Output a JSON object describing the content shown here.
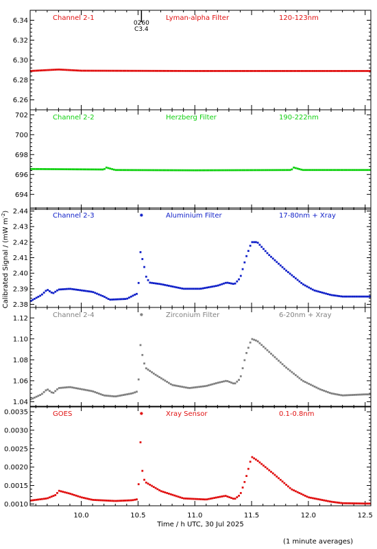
{
  "colors": {
    "red": "#e01010",
    "green": "#10d010",
    "blue": "#1020c8",
    "gray": "#808080",
    "axis": "#000000"
  },
  "chart_data": {
    "type": "scatter",
    "xlabel": "Time / h UTC, 30 Jul 2025",
    "ylabel": "Calibrated Signal / (mW m",
    "ylabel_sup": "-2",
    "ylabel_close": ")",
    "footnote": "(1 minute averages)",
    "xlim": [
      9.55,
      12.55
    ],
    "xticks": [
      "10.0",
      "10.5",
      "11.0",
      "11.5",
      "12.0",
      "12.5"
    ],
    "xtick_values": [
      10.0,
      10.5,
      11.0,
      11.5,
      12.0,
      12.5
    ],
    "event_marker": {
      "x": 10.53,
      "label_top": "0260",
      "label_bottom": "C3.4"
    },
    "panels": [
      {
        "channel": "Channel 2-1",
        "filter": "Lyman-alpha Filter",
        "band": "120-123nm",
        "color_key": "red",
        "ylim": [
          6.25,
          6.35
        ],
        "yticks": [
          "6.26",
          "6.28",
          "6.30",
          "6.32",
          "6.34"
        ],
        "ytick_values": [
          6.26,
          6.28,
          6.3,
          6.32,
          6.34
        ],
        "knots": [
          [
            9.55,
            6.289
          ],
          [
            9.8,
            6.2905
          ],
          [
            10.0,
            6.2893
          ],
          [
            11.0,
            6.289
          ],
          [
            12.5,
            6.289
          ]
        ],
        "flare_star": false
      },
      {
        "channel": "Channel 2-2",
        "filter": "Herzberg Filter",
        "band": "190-222nm",
        "color_key": "green",
        "ylim": [
          692.5,
          702.5
        ],
        "yticks": [
          "694",
          "696",
          "698",
          "700",
          "702"
        ],
        "ytick_values": [
          694,
          696,
          698,
          700,
          702
        ],
        "knots": [
          [
            9.55,
            696.55
          ],
          [
            10.2,
            696.5
          ],
          [
            10.22,
            696.7
          ],
          [
            10.3,
            696.45
          ],
          [
            11.0,
            696.42
          ],
          [
            11.85,
            696.45
          ],
          [
            11.87,
            696.7
          ],
          [
            11.95,
            696.45
          ],
          [
            12.5,
            696.45
          ]
        ],
        "flare_star": false
      },
      {
        "channel": "Channel 2-3",
        "filter": "Aluminium Filter",
        "band": "17-80nm + Xray",
        "color_key": "blue",
        "ylim": [
          2.378,
          2.442
        ],
        "yticks": [
          "2.38",
          "2.39",
          "2.40",
          "2.41",
          "2.42",
          "2.43",
          "2.44"
        ],
        "ytick_values": [
          2.38,
          2.39,
          2.4,
          2.41,
          2.42,
          2.43,
          2.44
        ],
        "knots": [
          [
            9.55,
            2.382
          ],
          [
            9.65,
            2.386
          ],
          [
            9.7,
            2.3895
          ],
          [
            9.75,
            2.387
          ],
          [
            9.8,
            2.3895
          ],
          [
            9.9,
            2.39
          ],
          [
            10.1,
            2.388
          ],
          [
            10.2,
            2.385
          ],
          [
            10.25,
            2.383
          ],
          [
            10.4,
            2.3835
          ],
          [
            10.48,
            2.3865
          ],
          [
            10.5,
            2.387
          ],
          [
            10.52,
            2.414
          ],
          [
            10.55,
            2.406
          ],
          [
            10.57,
            2.398
          ],
          [
            10.6,
            2.394
          ],
          [
            10.7,
            2.393
          ],
          [
            10.9,
            2.39
          ],
          [
            11.05,
            2.39
          ],
          [
            11.2,
            2.392
          ],
          [
            11.28,
            2.394
          ],
          [
            11.35,
            2.393
          ],
          [
            11.4,
            2.397
          ],
          [
            11.45,
            2.41
          ],
          [
            11.5,
            2.42
          ],
          [
            11.55,
            2.42
          ],
          [
            11.65,
            2.412
          ],
          [
            11.8,
            2.402
          ],
          [
            11.95,
            2.393
          ],
          [
            12.05,
            2.389
          ],
          [
            12.2,
            2.386
          ],
          [
            12.3,
            2.385
          ],
          [
            12.5,
            2.385
          ]
        ],
        "flare_star": true,
        "star_label_y": 2.437
      },
      {
        "channel": "Channel 2-4",
        "filter": "Zirconium Filter",
        "band": "6-20nm + Xray",
        "color_key": "gray",
        "ylim": [
          1.035,
          1.13
        ],
        "yticks": [
          "1.04",
          "1.06",
          "1.08",
          "1.10",
          "1.12"
        ],
        "ytick_values": [
          1.04,
          1.06,
          1.08,
          1.1,
          1.12
        ],
        "knots": [
          [
            9.55,
            1.042
          ],
          [
            9.65,
            1.047
          ],
          [
            9.7,
            1.052
          ],
          [
            9.75,
            1.048
          ],
          [
            9.8,
            1.053
          ],
          [
            9.9,
            1.054
          ],
          [
            10.1,
            1.05
          ],
          [
            10.2,
            1.046
          ],
          [
            10.3,
            1.045
          ],
          [
            10.45,
            1.048
          ],
          [
            10.5,
            1.05
          ],
          [
            10.52,
            1.095
          ],
          [
            10.55,
            1.078
          ],
          [
            10.57,
            1.072
          ],
          [
            10.65,
            1.066
          ],
          [
            10.8,
            1.056
          ],
          [
            10.95,
            1.053
          ],
          [
            11.1,
            1.055
          ],
          [
            11.2,
            1.058
          ],
          [
            11.28,
            1.06
          ],
          [
            11.35,
            1.057
          ],
          [
            11.4,
            1.062
          ],
          [
            11.45,
            1.085
          ],
          [
            11.5,
            1.1
          ],
          [
            11.55,
            1.098
          ],
          [
            11.65,
            1.088
          ],
          [
            11.8,
            1.073
          ],
          [
            11.95,
            1.06
          ],
          [
            12.1,
            1.052
          ],
          [
            12.2,
            1.048
          ],
          [
            12.3,
            1.046
          ],
          [
            12.5,
            1.047
          ]
        ],
        "flare_star": true,
        "star_label_y": 1.123
      },
      {
        "channel": "GOES",
        "filter": "Xray Sensor",
        "band": "0.1-0.8nm",
        "color_key": "red",
        "ylim": [
          0.00095,
          0.00365
        ],
        "yticks": [
          "0.0010",
          "0.0015",
          "0.0020",
          "0.0025",
          "0.0030",
          "0.0035"
        ],
        "ytick_values": [
          0.001,
          0.0015,
          0.002,
          0.0025,
          0.003,
          0.0035
        ],
        "knots": [
          [
            9.55,
            0.00109
          ],
          [
            9.7,
            0.00115
          ],
          [
            9.78,
            0.00125
          ],
          [
            9.8,
            0.00136
          ],
          [
            9.9,
            0.00128
          ],
          [
            10.0,
            0.00118
          ],
          [
            10.1,
            0.00111
          ],
          [
            10.3,
            0.00108
          ],
          [
            10.45,
            0.0011
          ],
          [
            10.5,
            0.00113
          ],
          [
            10.52,
            0.00275
          ],
          [
            10.54,
            0.00182
          ],
          [
            10.56,
            0.0016
          ],
          [
            10.7,
            0.00135
          ],
          [
            10.9,
            0.00115
          ],
          [
            11.1,
            0.00112
          ],
          [
            11.2,
            0.00118
          ],
          [
            11.27,
            0.00122
          ],
          [
            11.35,
            0.00113
          ],
          [
            11.4,
            0.00125
          ],
          [
            11.45,
            0.0017
          ],
          [
            11.5,
            0.00228
          ],
          [
            11.55,
            0.00218
          ],
          [
            11.7,
            0.0018
          ],
          [
            11.85,
            0.0014
          ],
          [
            12.0,
            0.00118
          ],
          [
            12.2,
            0.00106
          ],
          [
            12.3,
            0.00102
          ],
          [
            12.5,
            0.00101
          ]
        ],
        "flare_star": true,
        "star_label_y": 0.00345
      }
    ]
  }
}
